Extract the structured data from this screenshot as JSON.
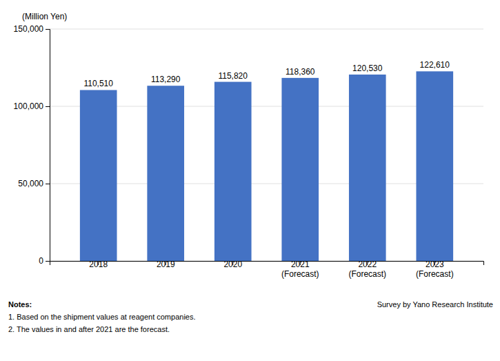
{
  "chart_data": {
    "type": "bar",
    "ylabel": "(Million Yen)",
    "categories": [
      "2018",
      "2019",
      "2020",
      "2021\n(Forecast)",
      "2022\n(Forecast)",
      "2023\n(Forecast)"
    ],
    "values": [
      110510,
      113290,
      115820,
      118360,
      120530,
      122610
    ],
    "value_labels": [
      "110,510",
      "113,290",
      "115,820",
      "118,360",
      "120,530",
      "122,610"
    ],
    "data_labels": true,
    "color": "#4472C4",
    "ylim": [
      0,
      150000
    ],
    "yticks": [
      0,
      {
        "value": 50000,
        "label": "50,000"
      },
      {
        "value": 100000,
        "label": "100,000"
      },
      {
        "value": 150000,
        "label": "150,000"
      }
    ],
    "grid": true,
    "annotations": [
      "Notes:",
      "1. Based on the shipment values at reagent companies.",
      "2. The values in and after 2021 are the forecast.",
      "Survey by Yano Research Institute"
    ]
  }
}
